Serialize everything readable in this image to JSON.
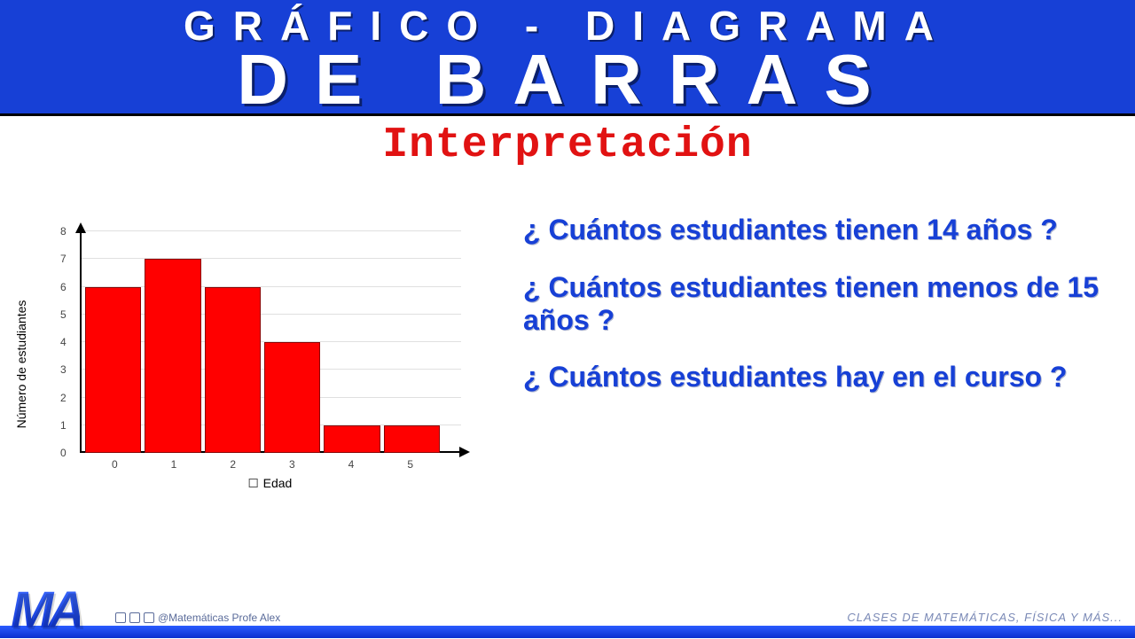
{
  "banner": {
    "line1": "GRÁFICO - DIAGRAMA",
    "line2": "DE BARRAS",
    "bg_color": "#1740d6",
    "text_color": "#ffffff"
  },
  "subtitle": {
    "text": "Interpretación",
    "color": "#e11212",
    "fontsize": 48
  },
  "chart": {
    "type": "bar",
    "ylabel": "Número de estudiantes",
    "xlabel": "Edad",
    "categories": [
      "0",
      "1",
      "2",
      "3",
      "4",
      "5"
    ],
    "values": [
      6,
      7,
      6,
      4,
      1,
      1
    ],
    "bar_color": "#ff0000",
    "bar_border_color": "#8b0000",
    "ylim_max": 8,
    "yticks": [
      0,
      1,
      2,
      3,
      4,
      5,
      6,
      7,
      8
    ],
    "grid_color": "#e0e0e0",
    "axis_color": "#000000",
    "tick_fontsize": 12,
    "label_fontsize": 14,
    "background_color": "#ffffff"
  },
  "questions": {
    "q1": "¿ Cuántos estudiantes tienen 14 años ?",
    "q2": "¿ Cuántos estudiantes tienen menos de 15 años ?",
    "q3": "¿ Cuántos estudiantes hay en el curso ?",
    "color": "#1740d6",
    "fontsize": 32
  },
  "footer": {
    "logo": "MA",
    "handle": "@Matemáticas Profe Alex",
    "tagline": "CLASES DE MATEMÁTICAS, FÍSICA Y MÁS...",
    "stripe_color": "#1740d6"
  }
}
